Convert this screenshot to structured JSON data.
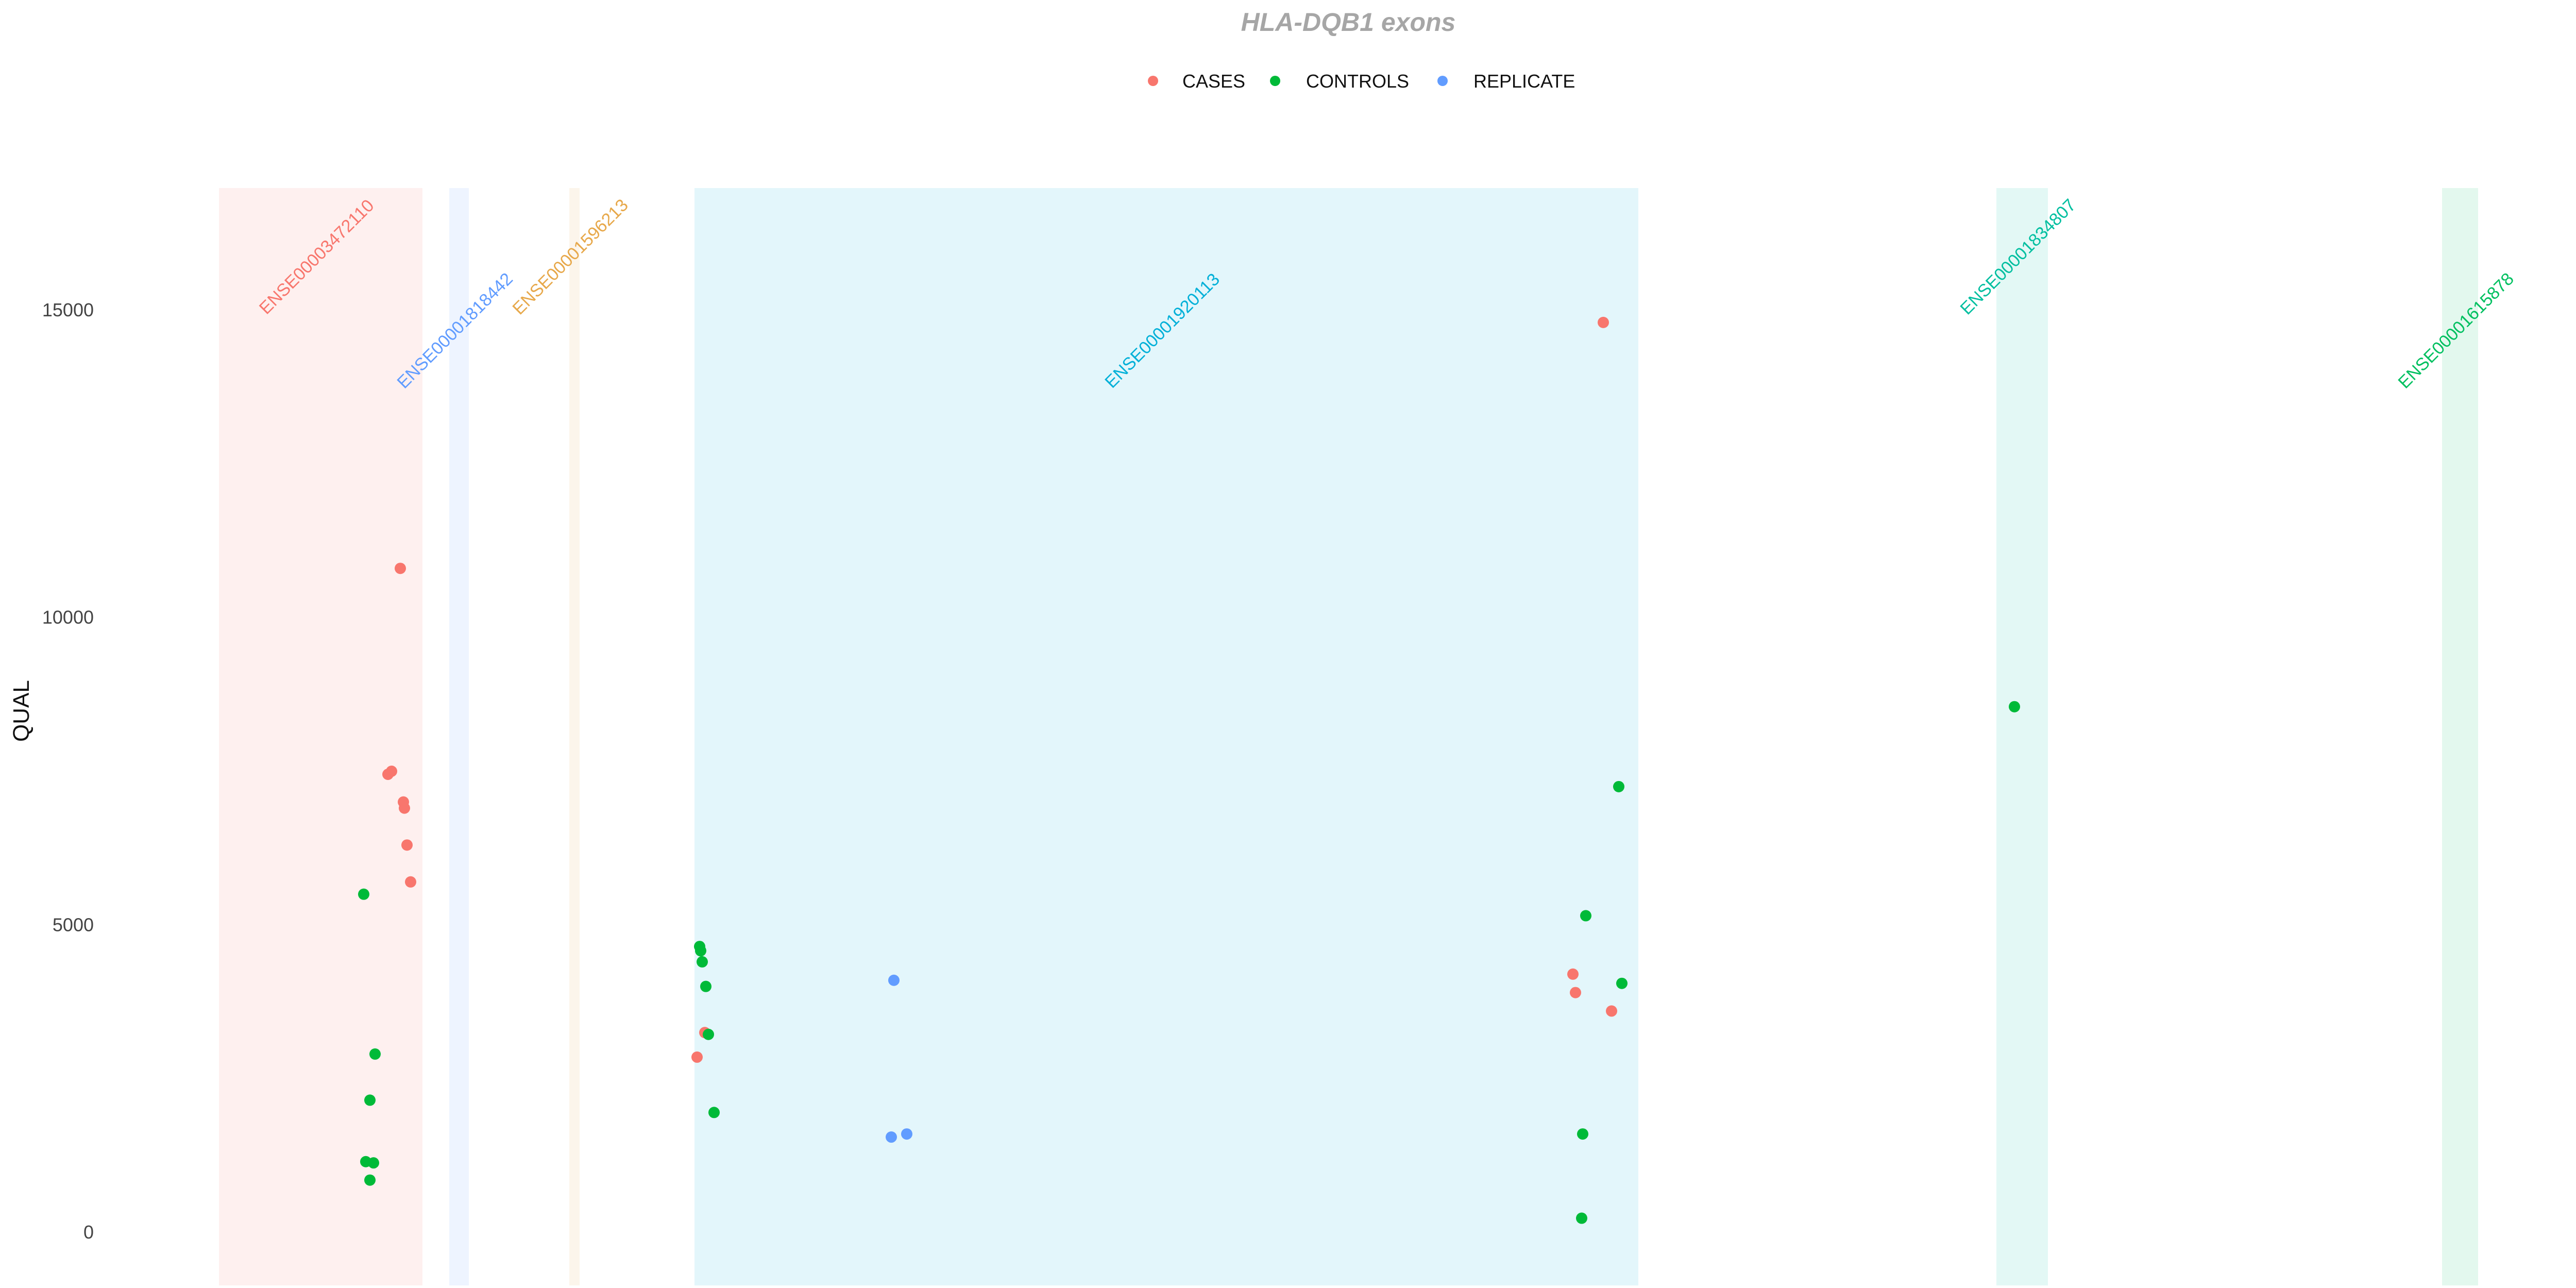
{
  "chart_data": {
    "type": "scatter",
    "title": "HLA-DQB1 exons",
    "ylabel": "QUAL",
    "xlabel": "",
    "ylim": [
      -800,
      17000
    ],
    "xlim": [
      0,
      5000
    ],
    "yticks": [
      0,
      5000,
      10000,
      15000
    ],
    "grid": false,
    "legend_position": "top",
    "legend": [
      {
        "name": "CASES",
        "color": "#F8766D"
      },
      {
        "name": "CONTROLS",
        "color": "#00BA38"
      },
      {
        "name": "REPLICATE",
        "color": "#619CFF"
      }
    ],
    "exons": [
      {
        "label": "ENSE00003472110",
        "start": 425,
        "end": 820,
        "color": "#F8766D",
        "label_at": 15800
      },
      {
        "label": "ENSE00001818442",
        "start": 872,
        "end": 910,
        "color": "#619CFF",
        "label_at": 14600
      },
      {
        "label": "ENSE00001596213",
        "start": 1105,
        "end": 1125,
        "color": "#E7A84A",
        "label_at": 15800
      },
      {
        "label": "ENSE00001920113",
        "start": 1348,
        "end": 3180,
        "color": "#00B0D8",
        "label_at": 14600
      },
      {
        "label": "ENSE00001834807",
        "start": 3875,
        "end": 3975,
        "color": "#00BFA0",
        "label_at": 15800
      },
      {
        "label": "ENSE00001615878",
        "start": 4740,
        "end": 4810,
        "color": "#00C060",
        "label_at": 14600
      }
    ],
    "series": [
      {
        "name": "CASES",
        "points": [
          {
            "x": 777,
            "y": 10800
          },
          {
            "x": 753,
            "y": 7450
          },
          {
            "x": 760,
            "y": 7500
          },
          {
            "x": 783,
            "y": 7000
          },
          {
            "x": 785,
            "y": 6900
          },
          {
            "x": 790,
            "y": 6300
          },
          {
            "x": 797,
            "y": 5700
          },
          {
            "x": 1353,
            "y": 2850
          },
          {
            "x": 1368,
            "y": 3250
          },
          {
            "x": 3112,
            "y": 14800
          },
          {
            "x": 3053,
            "y": 4200
          },
          {
            "x": 3058,
            "y": 3900
          },
          {
            "x": 3128,
            "y": 3600
          }
        ]
      },
      {
        "name": "CONTROLS",
        "points": [
          {
            "x": 706,
            "y": 5500
          },
          {
            "x": 728,
            "y": 2900
          },
          {
            "x": 718,
            "y": 2150
          },
          {
            "x": 710,
            "y": 1150
          },
          {
            "x": 725,
            "y": 1130
          },
          {
            "x": 718,
            "y": 850
          },
          {
            "x": 1358,
            "y": 4650
          },
          {
            "x": 1360,
            "y": 4580
          },
          {
            "x": 1363,
            "y": 4400
          },
          {
            "x": 1370,
            "y": 4000
          },
          {
            "x": 1375,
            "y": 3220
          },
          {
            "x": 1386,
            "y": 1950
          },
          {
            "x": 3142,
            "y": 7250
          },
          {
            "x": 3078,
            "y": 5150
          },
          {
            "x": 3148,
            "y": 4050
          },
          {
            "x": 3072,
            "y": 1600
          },
          {
            "x": 3070,
            "y": 230
          },
          {
            "x": 3910,
            "y": 8550
          }
        ]
      },
      {
        "name": "REPLICATE",
        "points": [
          {
            "x": 1735,
            "y": 4100
          },
          {
            "x": 1730,
            "y": 1550
          },
          {
            "x": 1760,
            "y": 1600
          }
        ]
      }
    ]
  }
}
